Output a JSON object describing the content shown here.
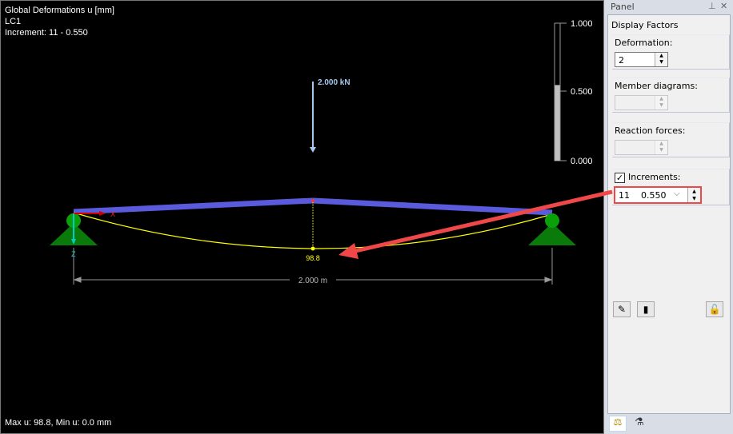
{
  "viewport": {
    "title": "Global Deformations u [mm]",
    "load_case": "LC1",
    "increment": "Increment: 11 - 0.550",
    "status": "Max u: 98.8, Min u: 0.0 mm",
    "load_label": "2.000 kN",
    "deformation_label": "98.8",
    "dimension_label": "2.000 m",
    "axis_x": "X",
    "axis_z": "Z",
    "scale": {
      "labels": [
        "1.000",
        "0.500",
        "0.000"
      ],
      "fill_fraction": 0.55
    },
    "colors": {
      "member": "#5a5adc",
      "deformed": "#ffff00",
      "support": "#0a8a0a",
      "load": "#a8c8f0",
      "callout": "#f04848"
    }
  },
  "panel": {
    "title": "Panel",
    "section": "Display Factors",
    "deformation": {
      "label": "Deformation:",
      "value": "2"
    },
    "member_diagrams": {
      "label": "Member diagrams:",
      "value": ""
    },
    "reaction_forces": {
      "label": "Reaction forces:",
      "value": ""
    },
    "increments": {
      "label": "Increments:",
      "checked": true,
      "index": "11",
      "value": "0.550"
    }
  }
}
